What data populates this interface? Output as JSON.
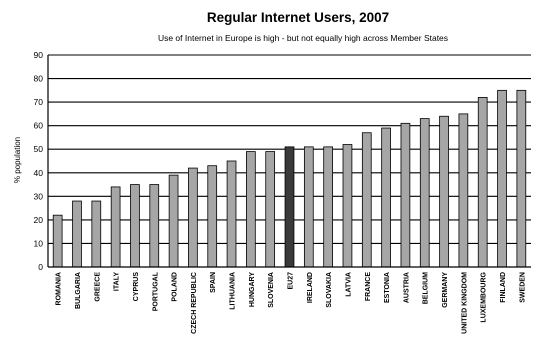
{
  "chart_data": {
    "type": "bar",
    "title": "Regular Internet Users, 2007",
    "subtitle": "Use of Internet in Europe is high - but not equally high across Member States",
    "xlabel": "",
    "ylabel": "% population",
    "ylim": [
      0,
      90
    ],
    "yticks": [
      0,
      10,
      20,
      30,
      40,
      50,
      60,
      70,
      80,
      90
    ],
    "grid": true,
    "legend": "none",
    "categories": [
      "ROMANIA",
      "BULGARIA",
      "GREECE",
      "ITALY",
      "CYPRUS",
      "PORTUGAL",
      "POLAND",
      "CZECH REPUBLIC",
      "SPAIN",
      "LITHUANIA",
      "HUNGARY",
      "SLOVENIA",
      "EU27",
      "IRELAND",
      "SLOVAKIA",
      "LATVIA",
      "FRANCE",
      "ESTONIA",
      "AUSTRIA",
      "BELGIUM",
      "GERMANY",
      "UNITED KINGDOM",
      "LUXEMBOURG",
      "FINLAND",
      "SWEDEN"
    ],
    "values": [
      22,
      28,
      28,
      34,
      35,
      35,
      39,
      42,
      43,
      45,
      49,
      49,
      51,
      51,
      51,
      52,
      57,
      59,
      61,
      63,
      64,
      65,
      72,
      75,
      75
    ],
    "highlight_category": "EU27",
    "colors": {
      "bar": "#a6a6a6",
      "highlight": "#3a3a3a",
      "stroke": "#000000",
      "grid": "#000000"
    }
  }
}
